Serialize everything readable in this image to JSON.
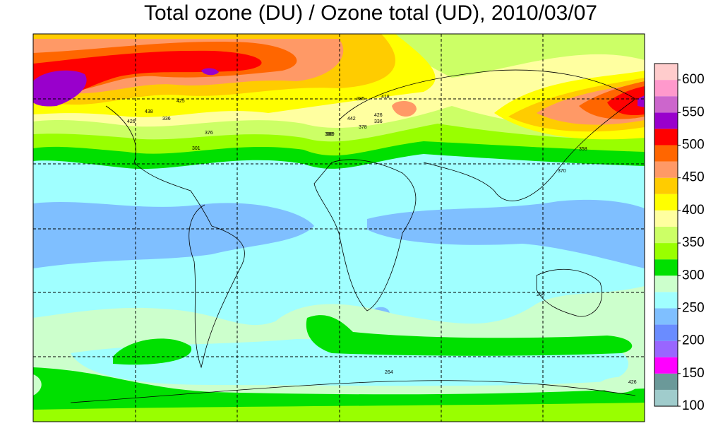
{
  "title": "Total ozone (DU) / Ozone total (UD), 2010/03/07",
  "colorbar": {
    "levels": [
      100,
      125,
      150,
      175,
      200,
      225,
      250,
      275,
      300,
      325,
      350,
      375,
      400,
      425,
      450,
      475,
      500,
      525,
      550,
      575,
      600,
      625
    ],
    "colors": [
      "#a0cccc",
      "#6b9999",
      "#ff00ff",
      "#9966ff",
      "#6a8cff",
      "#7fbfff",
      "#a0ffff",
      "#ccffcc",
      "#00e000",
      "#99ff00",
      "#ccff66",
      "#ffffa0",
      "#ffff00",
      "#ffcc00",
      "#ff9966",
      "#ff6600",
      "#ff0000",
      "#9900cc",
      "#cc66cc",
      "#ff99cc",
      "#ffcccc"
    ],
    "ticks": [
      100,
      150,
      200,
      250,
      300,
      350,
      400,
      450,
      500,
      550,
      600
    ]
  },
  "station_labels": [
    "438",
    "425",
    "336",
    "426",
    "376",
    "301",
    "388",
    "385",
    "418",
    "442",
    "426",
    "336",
    "389",
    "378",
    "358",
    "370",
    "264",
    "264",
    "426"
  ]
}
